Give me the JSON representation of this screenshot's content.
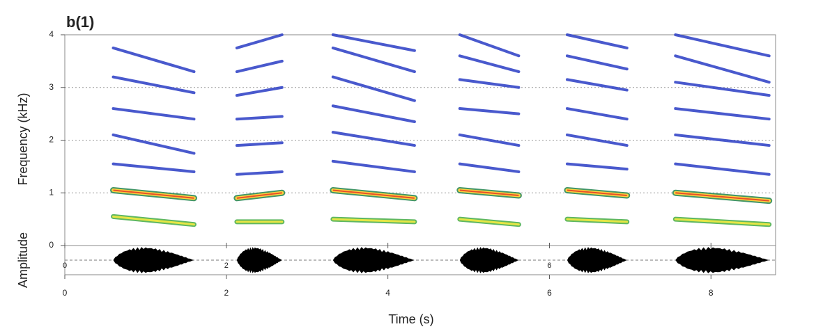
{
  "chart_data": {
    "type": "spectrogram",
    "title": "b(1)",
    "y_label": "Frequency (kHz)",
    "amplitude_label": "Amplitude",
    "x_label": "Time (s)",
    "xlim": [
      0,
      8.8
    ],
    "ylim": [
      0,
      4
    ],
    "xticks": [
      0,
      2,
      4,
      6,
      8
    ],
    "yticks": [
      0,
      1,
      2,
      3,
      4
    ],
    "amplitude_ticks": [
      0,
      2,
      6
    ],
    "grid": true,
    "calls": [
      {
        "start": 0.6,
        "end": 1.6,
        "harmonics": [
          [
            0.55,
            0.4
          ],
          [
            1.05,
            0.9
          ],
          [
            1.55,
            1.4
          ],
          [
            2.1,
            1.75
          ],
          [
            2.6,
            2.4
          ],
          [
            3.2,
            2.9
          ],
          [
            3.75,
            3.3
          ]
        ]
      },
      {
        "start": 2.13,
        "end": 2.69,
        "harmonics": [
          [
            0.45,
            0.45
          ],
          [
            0.9,
            1.0
          ],
          [
            1.35,
            1.4
          ],
          [
            1.9,
            1.95
          ],
          [
            2.4,
            2.45
          ],
          [
            2.85,
            3.0
          ],
          [
            3.3,
            3.5
          ],
          [
            3.75,
            4.0
          ]
        ]
      },
      {
        "start": 3.32,
        "end": 4.33,
        "harmonics": [
          [
            0.5,
            0.45
          ],
          [
            1.05,
            0.9
          ],
          [
            1.6,
            1.4
          ],
          [
            2.15,
            1.9
          ],
          [
            2.65,
            2.35
          ],
          [
            3.2,
            2.75
          ],
          [
            3.75,
            3.3
          ],
          [
            4.0,
            3.7
          ]
        ]
      },
      {
        "start": 4.89,
        "end": 5.62,
        "harmonics": [
          [
            0.5,
            0.4
          ],
          [
            1.05,
            0.95
          ],
          [
            1.55,
            1.4
          ],
          [
            2.1,
            1.9
          ],
          [
            2.6,
            2.5
          ],
          [
            3.15,
            3.0
          ],
          [
            3.6,
            3.3
          ],
          [
            4.0,
            3.6
          ]
        ]
      },
      {
        "start": 6.22,
        "end": 6.96,
        "harmonics": [
          [
            0.5,
            0.45
          ],
          [
            1.05,
            0.95
          ],
          [
            1.55,
            1.45
          ],
          [
            2.1,
            1.9
          ],
          [
            2.6,
            2.4
          ],
          [
            3.15,
            2.95
          ],
          [
            3.6,
            3.35
          ],
          [
            4.0,
            3.75
          ]
        ]
      },
      {
        "start": 7.56,
        "end": 8.72,
        "harmonics": [
          [
            0.5,
            0.4
          ],
          [
            1.0,
            0.85
          ],
          [
            1.55,
            1.35
          ],
          [
            2.1,
            1.9
          ],
          [
            2.6,
            2.4
          ],
          [
            3.1,
            2.85
          ],
          [
            3.6,
            3.1
          ],
          [
            4.0,
            3.6
          ]
        ]
      }
    ]
  }
}
